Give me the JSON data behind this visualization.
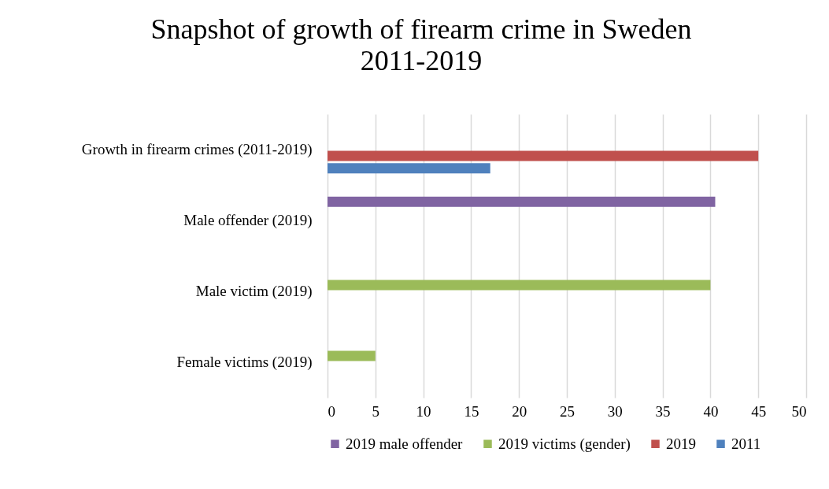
{
  "chart_data": {
    "type": "bar",
    "orientation": "horizontal",
    "title": "Snapshot of growth of firearm crime in Sweden 2011-2019",
    "categories": [
      "Growth in firearm crimes (2011-2019)",
      "Male offender (2019)",
      "Male victim (2019)",
      "Female victims (2019)"
    ],
    "series": [
      {
        "name": "2019 male offender",
        "color": "#8064a2",
        "values": [
          null,
          40.5,
          null,
          null
        ]
      },
      {
        "name": "2019 victims (gender)",
        "color": "#9bbb59",
        "values": [
          null,
          null,
          40,
          5
        ]
      },
      {
        "name": "2019",
        "color": "#c0504d",
        "values": [
          45,
          null,
          null,
          null
        ]
      },
      {
        "name": "2011",
        "color": "#4f81bd",
        "values": [
          17,
          null,
          null,
          null
        ]
      }
    ],
    "xlim": [
      0,
      50
    ],
    "xticks": [
      0,
      5,
      10,
      15,
      20,
      25,
      30,
      35,
      40,
      45,
      50
    ],
    "grid": "x",
    "legend": "bottom"
  }
}
